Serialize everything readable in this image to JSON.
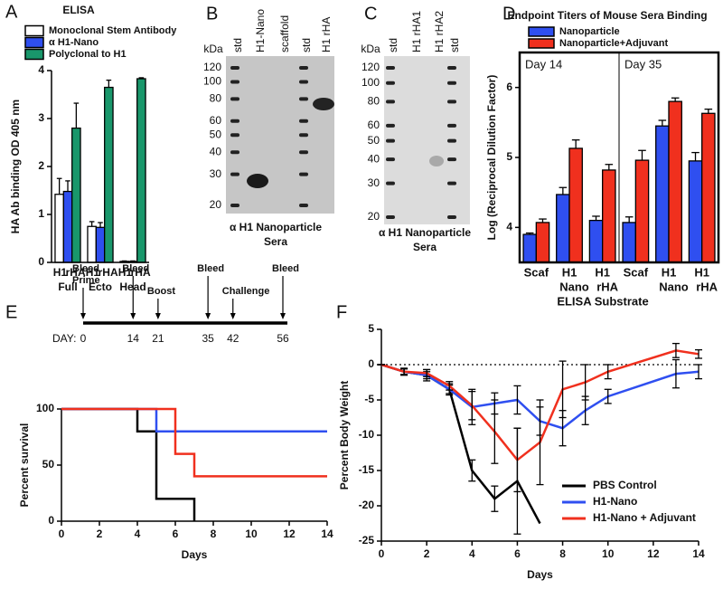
{
  "chart_data": [
    {
      "type": "bar",
      "label": "A",
      "title": "ELISA",
      "y_label": "HA Ab binding OD 405 nm",
      "categories": [
        "Full",
        "Ecto",
        "Head"
      ],
      "subcategories": [
        [
          "H1",
          "rHA"
        ],
        [
          "H1",
          "rHA"
        ],
        [
          "H1",
          "rHA"
        ]
      ],
      "ylim": [
        0,
        4
      ],
      "yticks": [
        0,
        1,
        2,
        3,
        4
      ],
      "series": [
        {
          "name": "Monoclonal Stem Antibody",
          "color": "#ffffff",
          "values": [
            1.42,
            0.75,
            0.02
          ],
          "errors": [
            0.33,
            0.1,
            0.01
          ]
        },
        {
          "name": "α H1-Nano",
          "color": "#2f4ff0",
          "values": [
            1.48,
            0.73,
            0.02
          ],
          "errors": [
            0.22,
            0.1,
            0.01
          ]
        },
        {
          "name": "Polyclonal to H1",
          "color": "#19976b",
          "values": [
            2.8,
            3.65,
            3.83
          ],
          "errors": [
            0.52,
            0.15,
            0.02
          ]
        }
      ]
    },
    {
      "type": "bar",
      "label": "D",
      "title": "Endpoint Titers of Mouse Sera Binding",
      "x_label": "ELISA Substrate",
      "y_label": "Log (Reciprocal Dilution Factor)",
      "groups": [
        "Day 14",
        "Day 35"
      ],
      "categories": [
        "Scaf",
        "H1",
        "H1",
        "Scaf",
        "H1",
        "H1"
      ],
      "category_sublabels": [
        null,
        "Nano",
        "rHA",
        null,
        "Nano",
        "rHA"
      ],
      "ylim": [
        3.5,
        6.5
      ],
      "yticks": [
        4,
        5,
        6
      ],
      "series": [
        {
          "name": "Nanoparticle",
          "color": "#2f4ff0",
          "values": [
            3.9,
            4.47,
            4.1,
            4.07,
            5.45,
            4.95
          ],
          "errors": [
            0.02,
            0.1,
            0.06,
            0.08,
            0.08,
            0.12
          ]
        },
        {
          "name": "Nanoparticle+Adjuvant",
          "color": "#f0301e",
          "values": [
            4.07,
            5.13,
            4.82,
            4.96,
            5.8,
            5.63
          ],
          "errors": [
            0.05,
            0.12,
            0.08,
            0.14,
            0.05,
            0.06
          ]
        }
      ]
    },
    {
      "type": "step",
      "label": "E",
      "x_label": "Days",
      "y_label": "Percent survival",
      "xlim": [
        0,
        14
      ],
      "xticks": [
        0,
        2,
        4,
        6,
        8,
        10,
        12,
        14
      ],
      "ylim": [
        0,
        100
      ],
      "yticks": [
        0,
        50,
        100
      ],
      "series": [
        {
          "color": "#000000",
          "x": [
            0,
            4,
            5,
            7
          ],
          "values": [
            100,
            80,
            20,
            0
          ]
        },
        {
          "color": "#2f4ff0",
          "x": [
            0,
            5,
            14
          ],
          "values": [
            100,
            80,
            80
          ]
        },
        {
          "color": "#f0301e",
          "x": [
            0,
            6,
            7,
            14
          ],
          "values": [
            100,
            60,
            40,
            40
          ]
        }
      ]
    },
    {
      "type": "line",
      "label": "F",
      "x_label": "Days",
      "y_label": "Percent Body Weight",
      "legend": "lower right",
      "zero_line": true,
      "xlim": [
        0,
        14
      ],
      "xticks": [
        0,
        2,
        4,
        6,
        8,
        10,
        12,
        14
      ],
      "ylim": [
        -25,
        5
      ],
      "yticks": [
        -25,
        -20,
        -15,
        -10,
        -5,
        0,
        5
      ],
      "series": [
        {
          "name": "PBS Control",
          "color": "#000000",
          "x": [
            0,
            1,
            2,
            3,
            4,
            5,
            6,
            7
          ],
          "values": [
            0,
            -1,
            -1.5,
            -3.5,
            -15,
            -19,
            -16.5,
            -22.5
          ],
          "errors": [
            0,
            0.5,
            0.8,
            0.8,
            1.5,
            1.8,
            7.5,
            null
          ]
        },
        {
          "name": "H1-Nano",
          "color": "#2f4ff0",
          "x": [
            0,
            1,
            2,
            3,
            4,
            5,
            6,
            7,
            8,
            9,
            10,
            13,
            14
          ],
          "values": [
            0,
            -1,
            -1.5,
            -3.5,
            -6,
            -5.5,
            -5,
            -8,
            -9,
            -6.5,
            -4.5,
            -1.3,
            -1
          ],
          "errors": [
            0,
            0.4,
            0.5,
            0.6,
            2.5,
            1.5,
            2,
            2,
            2.5,
            2,
            1,
            2,
            1
          ]
        },
        {
          "name": "H1-Nano + Adjuvant",
          "color": "#f0301e",
          "x": [
            0,
            1,
            2,
            3,
            4,
            5,
            6,
            7,
            8,
            9,
            10,
            13,
            14
          ],
          "values": [
            0,
            -1,
            -1.2,
            -3,
            -5.8,
            -9.5,
            -13.5,
            -11,
            -3.5,
            -2.5,
            -1,
            2,
            1.5
          ],
          "errors": [
            0,
            0.4,
            0.5,
            0.6,
            2,
            4.5,
            4.5,
            6,
            4,
            2.5,
            1,
            1,
            0.6
          ]
        }
      ]
    }
  ],
  "blots": [
    {
      "label": "B",
      "unit": "kDa",
      "lanes": [
        "std",
        "H1-Nano",
        "scaffold",
        "std",
        "H1 rHA"
      ],
      "markers": [
        120,
        100,
        80,
        60,
        50,
        40,
        30,
        20
      ],
      "caption": [
        "α H1 Nanoparticle",
        "Sera"
      ]
    },
    {
      "label": "C",
      "unit": "kDa",
      "lanes": [
        "std",
        "H1 rHA1",
        "H1 rHA2",
        "std"
      ],
      "markers": [
        120,
        100,
        80,
        60,
        50,
        40,
        30,
        20
      ],
      "caption": [
        "α H1 Nanoparticle",
        "Sera"
      ]
    }
  ],
  "timeline": {
    "day_label": "DAY:",
    "xlim": [
      0,
      56
    ],
    "events": [
      {
        "day": 0,
        "labels": [
          "Bleed",
          "Prime"
        ]
      },
      {
        "day": 14,
        "labels": [
          "Bleed"
        ]
      },
      {
        "day": 21,
        "labels": [
          "Boost"
        ]
      },
      {
        "day": 35,
        "labels": [
          "Bleed"
        ]
      },
      {
        "day": 42,
        "labels": [
          "Challenge"
        ]
      },
      {
        "day": 56,
        "labels": [
          "Bleed"
        ]
      }
    ]
  }
}
